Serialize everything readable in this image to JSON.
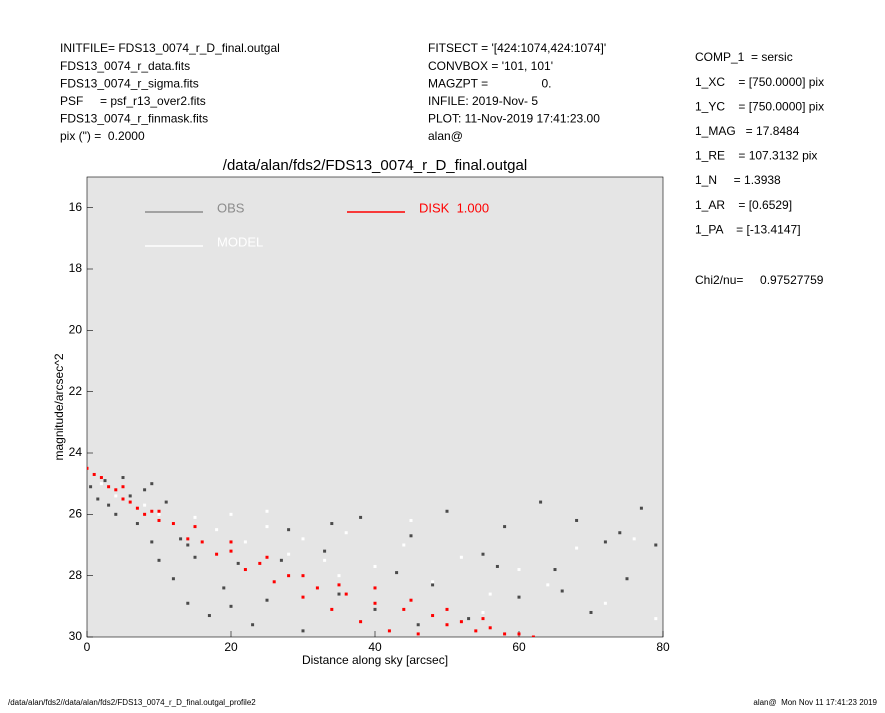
{
  "header": {
    "left": [
      "INITFILE= FDS13_0074_r_D_final.outgal",
      "FDS13_0074_r_data.fits",
      "FDS13_0074_r_sigma.fits",
      "PSF     = psf_r13_over2.fits",
      "FDS13_0074_r_finmask.fits",
      "pix (\") =  0.2000"
    ],
    "middle": [
      "FITSECT = '[424:1074,424:1074]'",
      "CONVBOX = '101, 101'",
      "MAGZPT =                0.",
      "INFILE: 2019-Nov- 5",
      "PLOT: 11-Nov-2019 17:41:23.00",
      "alan@"
    ],
    "right": [
      "COMP_1  = sersic",
      "1_XC    = [750.0000] pix",
      "1_YC    = [750.0000] pix",
      "1_MAG   = 17.8484",
      "1_RE    = 107.3132 pix",
      "1_N     = 1.3938",
      "1_AR    = [0.6529]",
      "1_PA    = [-13.4147]"
    ],
    "chi2": "Chi2/nu=     0.97527759"
  },
  "footer": {
    "left": "/data/alan/fds2//data/alan/fds2/FDS13_0074_r_D_final.outgal_profile2",
    "right": "alan@  Mon Nov 11 17:41:23 2019"
  },
  "chart_data": {
    "type": "scatter",
    "title": "/data/alan/fds2/FDS13_0074_r_D_final.outgal",
    "x_label": "Distance along sky [arcsec]",
    "y_label": "magnitude/arcsec^2",
    "xlim": [
      0,
      80
    ],
    "xticks": [
      0,
      20,
      40,
      60,
      80
    ],
    "ylim": [
      15,
      30
    ],
    "yticks": [
      16,
      18,
      20,
      22,
      24,
      26,
      28,
      30
    ],
    "y_inverted": true,
    "grid": false,
    "background": "#e5e5e5",
    "series": [
      {
        "name": "OBS",
        "color": "#4a4a4a",
        "legend_color": "#8c8c8c",
        "x": [
          0.5,
          1.5,
          2.5,
          4,
          5,
          6,
          7,
          8,
          9,
          10,
          11,
          12,
          13,
          14,
          15,
          17,
          19,
          21,
          23,
          25,
          28,
          30,
          33,
          35,
          38,
          40,
          43,
          45,
          48,
          50,
          53,
          55,
          58,
          60,
          63,
          65,
          68,
          70,
          72,
          75,
          77,
          79,
          3,
          9,
          14,
          20,
          27,
          34,
          46,
          57,
          66,
          74
        ],
        "values": [
          25.1,
          25.5,
          24.9,
          26.0,
          24.8,
          25.4,
          26.3,
          25.2,
          26.9,
          27.5,
          25.6,
          28.1,
          26.8,
          28.9,
          27.4,
          29.3,
          28.4,
          27.6,
          29.6,
          28.8,
          26.5,
          29.8,
          27.2,
          28.6,
          26.1,
          29.1,
          27.9,
          26.7,
          28.3,
          25.9,
          29.4,
          27.3,
          26.4,
          28.7,
          25.6,
          27.8,
          26.2,
          29.2,
          26.9,
          28.1,
          25.8,
          27.0,
          25.7,
          25.0,
          27.0,
          29.0,
          27.5,
          26.3,
          29.6,
          27.7,
          28.5,
          26.6
        ]
      },
      {
        "name": "MODEL",
        "color": "#ffffff",
        "legend_color": "#ffffff",
        "x": [
          2,
          4,
          6,
          8,
          10,
          12,
          15,
          18,
          20,
          22,
          25,
          28,
          30,
          33,
          36,
          40,
          44,
          48,
          52,
          56,
          60,
          64,
          68,
          72,
          76,
          79,
          25,
          35,
          45,
          55
        ],
        "values": [
          25.0,
          25.4,
          25.6,
          25.7,
          26.0,
          26.3,
          26.1,
          26.5,
          26.0,
          26.9,
          26.4,
          27.3,
          26.8,
          27.5,
          26.6,
          27.7,
          27.0,
          28.2,
          27.4,
          28.6,
          27.8,
          28.3,
          27.1,
          28.9,
          26.8,
          29.4,
          25.9,
          28.0,
          26.2,
          29.2
        ]
      },
      {
        "name": "DISK  1.000",
        "color": "#ff0000",
        "legend_color": "#ff0000",
        "x": [
          0,
          1,
          2,
          3,
          4,
          5,
          6,
          7,
          8,
          9,
          10,
          12,
          14,
          16,
          18,
          20,
          22,
          24,
          26,
          28,
          30,
          32,
          34,
          36,
          38,
          40,
          42,
          44,
          46,
          48,
          50,
          52,
          54,
          56,
          58,
          60,
          62,
          5,
          10,
          15,
          20,
          25,
          30,
          35,
          40,
          45,
          50,
          55
        ],
        "values": [
          24.5,
          24.7,
          24.8,
          25.1,
          25.2,
          25.5,
          25.6,
          25.8,
          26.0,
          25.9,
          26.2,
          26.3,
          26.8,
          26.9,
          27.3,
          27.2,
          27.8,
          27.6,
          28.2,
          28.0,
          28.7,
          28.4,
          29.1,
          28.6,
          29.5,
          28.9,
          29.8,
          29.1,
          29.9,
          29.3,
          29.6,
          29.5,
          29.8,
          29.7,
          29.9,
          29.9,
          30.0,
          25.1,
          25.9,
          26.4,
          26.9,
          27.4,
          28.0,
          28.3,
          28.4,
          28.8,
          29.1,
          29.4
        ]
      }
    ]
  }
}
